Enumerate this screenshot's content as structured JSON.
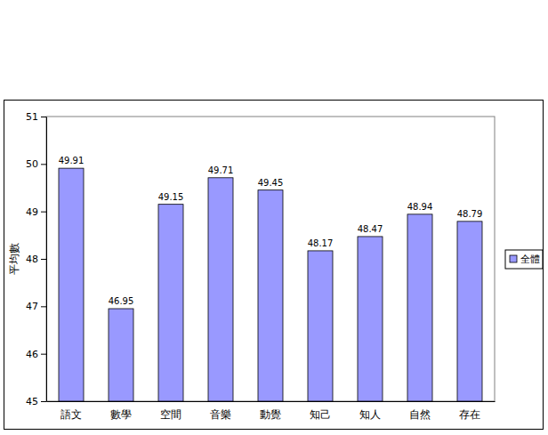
{
  "chart_data": {
    "type": "bar",
    "y_label": "平均數",
    "categories": [
      "語文",
      "數學",
      "空間",
      "音樂",
      "動覺",
      "知己",
      "知人",
      "自然",
      "存在"
    ],
    "series": [
      {
        "name": "全體",
        "color": "#9999ff",
        "values": [
          49.91,
          46.95,
          49.15,
          49.71,
          49.45,
          48.17,
          48.47,
          48.94,
          48.79
        ]
      }
    ],
    "ylim": [
      45,
      51
    ],
    "yticks": [
      45,
      46,
      47,
      48,
      49,
      50,
      51
    ],
    "grid": false,
    "legend": "right",
    "data_labels": true
  }
}
